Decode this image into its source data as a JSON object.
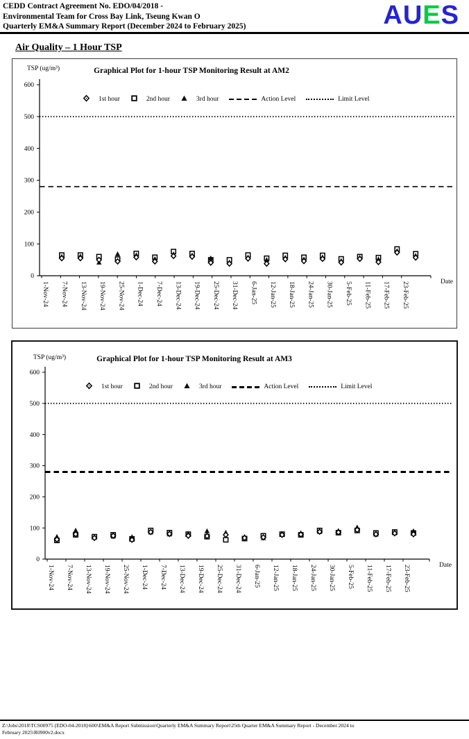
{
  "header": {
    "line1": "CEDD Contract Agreement No. EDO/04/2018 -",
    "line2": "Environmental Team for Cross Bay Link, Tseung Kwan O",
    "line3": "Quarterly EM&A Summary Report (December 2024 to February 2025)"
  },
  "logo": {
    "letters": [
      {
        "ch": "A",
        "color": "#2424d2"
      },
      {
        "ch": "U",
        "color": "#2424d2"
      },
      {
        "ch": "E",
        "color": "#00cc44"
      },
      {
        "ch": "S",
        "color": "#2424d2"
      }
    ]
  },
  "section_title": "Air Quality – 1 Hour TSP",
  "chart_data": [
    {
      "type": "scatter",
      "title": "Graphical Plot for 1-hour TSP Monitoring Result at AM2",
      "ylabel": "TSP (ug/m³)",
      "xlabel": "Date",
      "ylim": [
        0,
        600
      ],
      "yticks": [
        0,
        100,
        200,
        300,
        400,
        500,
        600
      ],
      "action_level": 280,
      "limit_level": 500,
      "action_label": "Action Level",
      "limit_label": "Limit Level",
      "legend_position": "top-center-inside",
      "grid": false,
      "categories": [
        "1-Nov-24",
        "7-Nov-24",
        "13-Nov-24",
        "19-Nov-24",
        "25-Nov-24",
        "1-Dec-24",
        "7-Dec-24",
        "13-Dec-24",
        "19-Dec-24",
        "25-Dec-24",
        "31-Dec-24",
        "6-Jan-25",
        "12-Jan-25",
        "18-Jan-25",
        "24-Jan-25",
        "30-Jan-25",
        "5-Feb-25",
        "11-Feb-25",
        "17-Feb-25",
        "23-Feb-25"
      ],
      "series": [
        {
          "name": "1st hour",
          "marker": "diamond",
          "values": [
            55,
            55,
            50,
            45,
            58,
            45,
            62,
            60,
            41,
            38,
            54,
            38,
            52,
            46,
            53,
            42,
            53,
            43,
            73,
            57
          ]
        },
        {
          "name": "2nd hour",
          "marker": "square",
          "values": [
            65,
            65,
            60,
            52,
            70,
            58,
            76,
            70,
            50,
            50,
            65,
            55,
            64,
            58,
            64,
            53,
            60,
            57,
            84,
            69
          ]
        },
        {
          "name": "3rd hour",
          "marker": "triangle",
          "values": [
            60,
            61,
            42,
            68,
            65,
            53,
            68,
            64,
            55,
            42,
            58,
            50,
            57,
            52,
            58,
            47,
            57,
            52,
            78,
            63
          ]
        }
      ]
    },
    {
      "type": "scatter",
      "title": "Graphical Plot for 1-hour TSP Monitoring Result at AM3",
      "ylabel": "TSP (ug/m³)",
      "xlabel": "Date",
      "ylim": [
        0,
        600
      ],
      "yticks": [
        0,
        100,
        200,
        300,
        400,
        500,
        600
      ],
      "action_level": 280,
      "limit_level": 500,
      "action_label": "Action Level",
      "limit_label": "Limit Level",
      "legend_position": "top-center-inside",
      "grid": false,
      "categories": [
        "1-Nov-24",
        "7-Nov-24",
        "13-Nov-24",
        "19-Nov-24",
        "25-Nov-24",
        "1-Dec-24",
        "7-Dec-24",
        "13-Dec-24",
        "19-Dec-24",
        "25-Dec-24",
        "31-Dec-24",
        "6-Jan-25",
        "12-Jan-25",
        "18-Jan-25",
        "24-Jan-25",
        "30-Jan-25",
        "5-Feb-25",
        "11-Feb-25",
        "17-Feb-25",
        "23-Feb-25"
      ],
      "series": [
        {
          "name": "1st hour",
          "marker": "diamond",
          "values": [
            63,
            80,
            68,
            75,
            62,
            87,
            81,
            75,
            74,
            78,
            68,
            70,
            78,
            79,
            88,
            86,
            94,
            80,
            83,
            80
          ]
        },
        {
          "name": "2nd hour",
          "marker": "square",
          "values": [
            60,
            78,
            72,
            78,
            65,
            92,
            85,
            80,
            72,
            62,
            66,
            75,
            80,
            78,
            92,
            85,
            92,
            84,
            87,
            84
          ]
        },
        {
          "name": "3rd hour",
          "marker": "triangle",
          "values": [
            72,
            92,
            70,
            73,
            71,
            86,
            80,
            82,
            90,
            85,
            72,
            68,
            82,
            84,
            88,
            91,
            102,
            79,
            84,
            90
          ]
        }
      ]
    }
  ],
  "footer": {
    "lines": [
      "Z:\\Jobs\\2018\\TCS00975 (EDO-04-2018)\\600\\EM&A Report Submission\\Quarterly EM&A Summary Report\\25th Quarter EM&A Summary Report - December 2024 to",
      "February 2025\\R0900v2.docx"
    ]
  }
}
